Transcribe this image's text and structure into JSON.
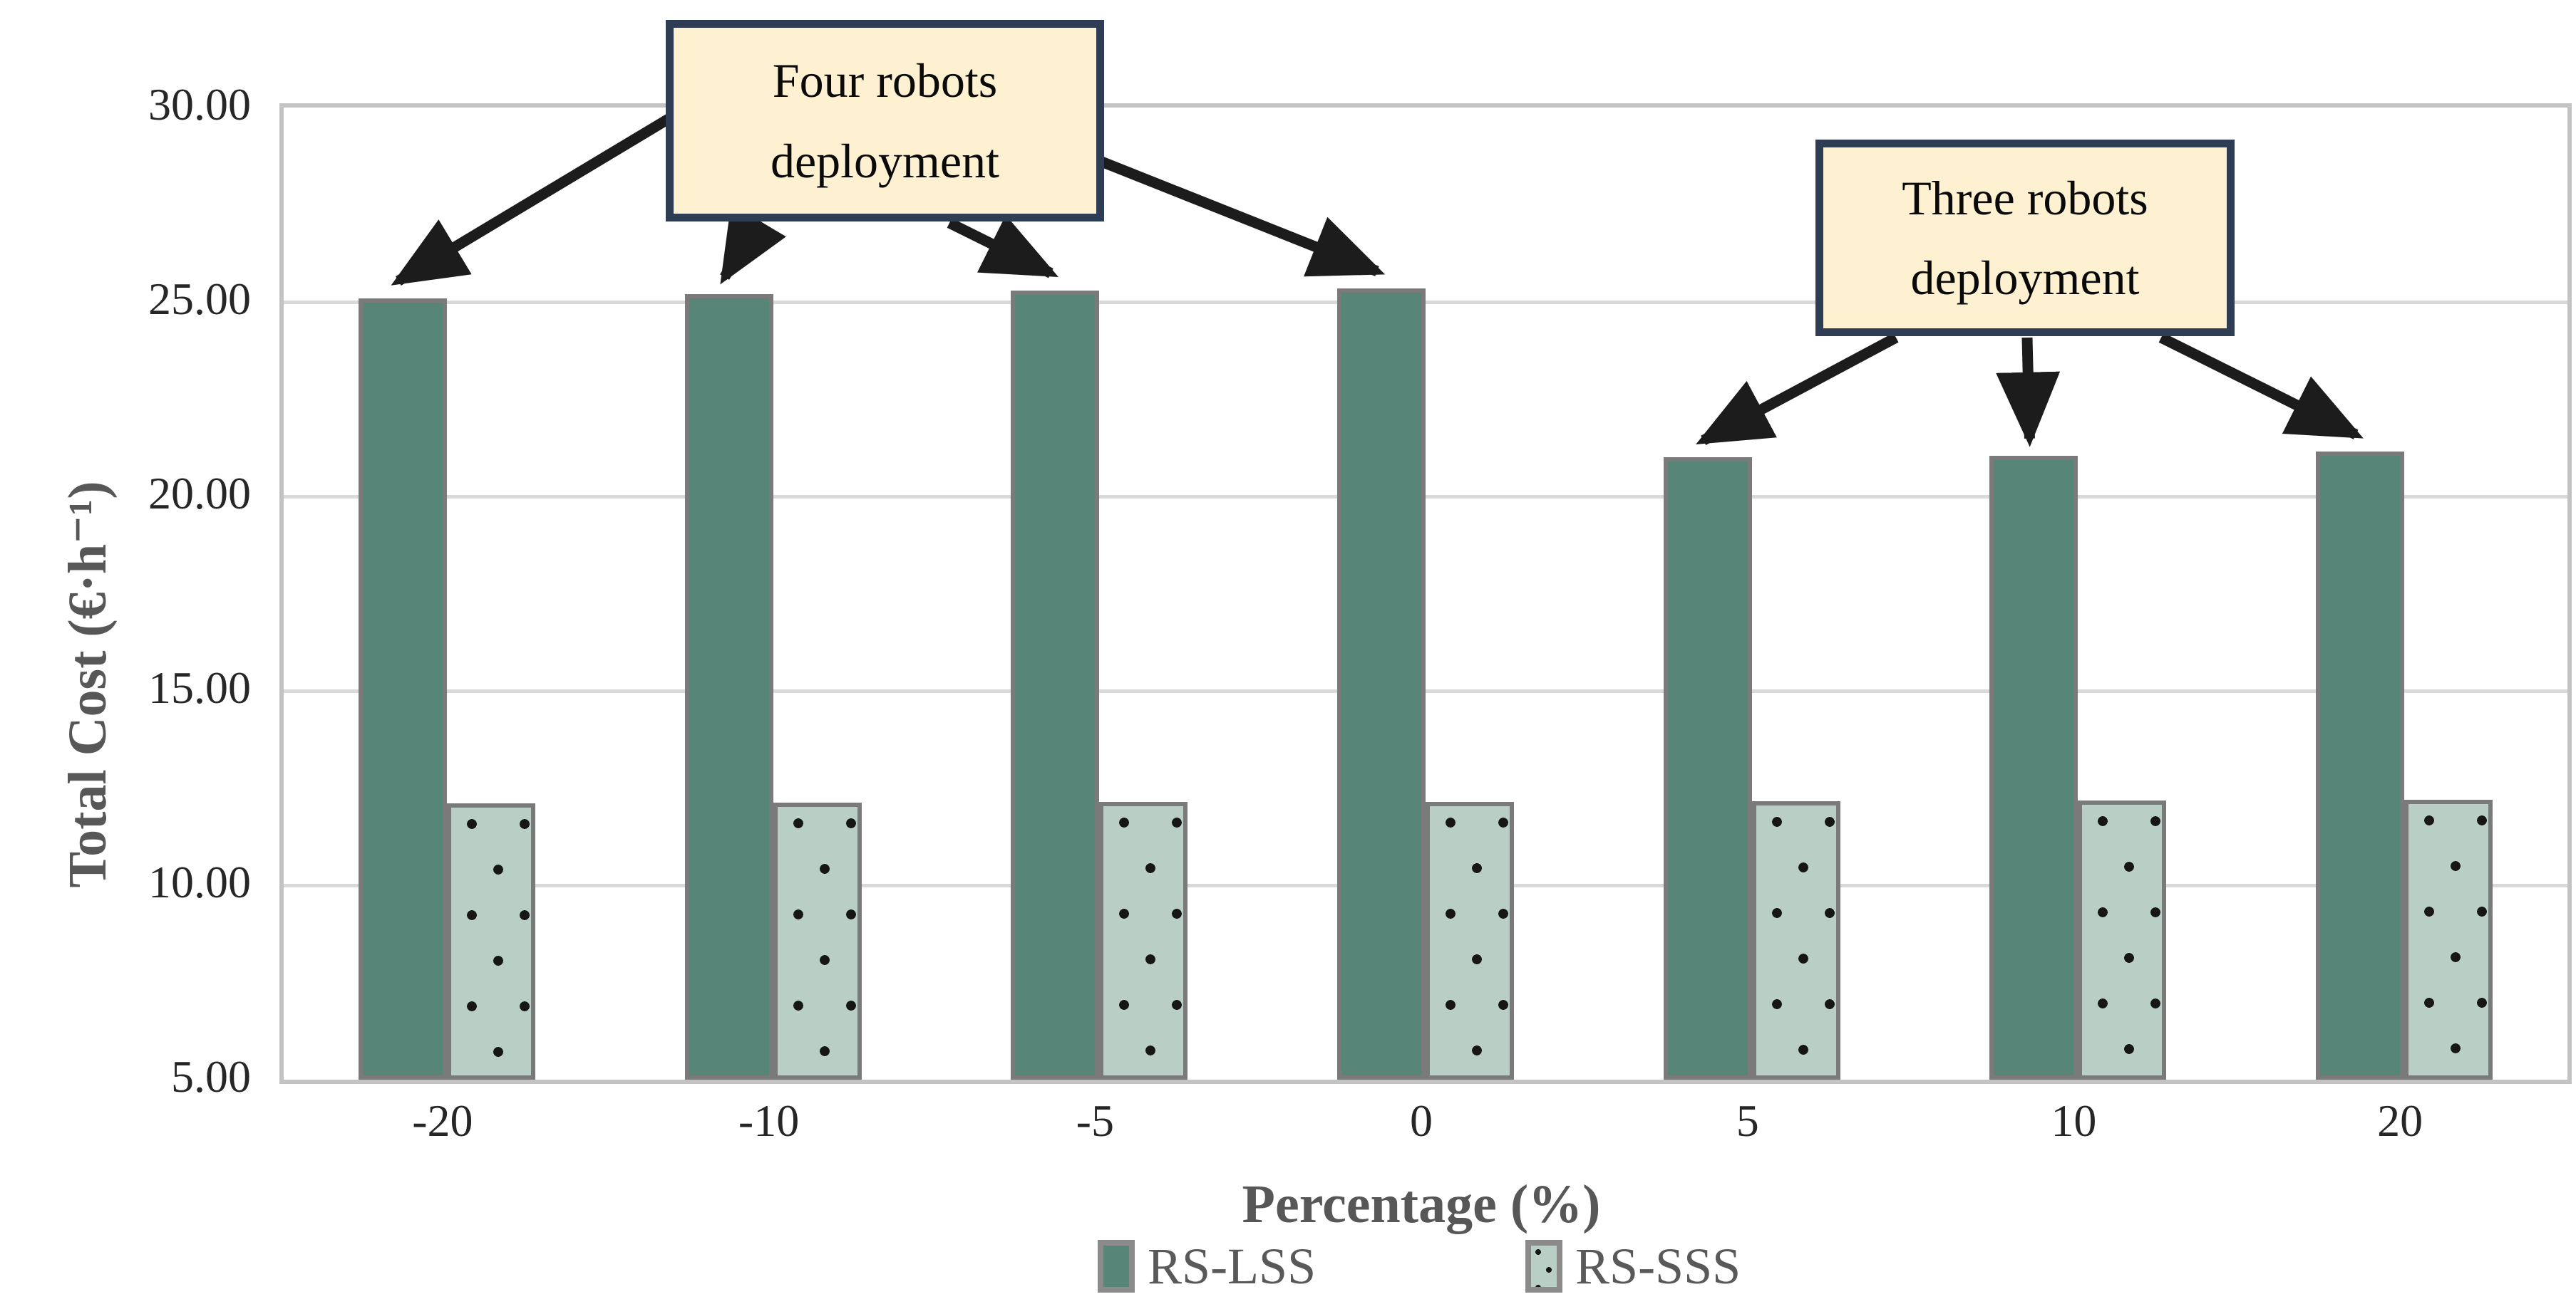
{
  "chart_data": {
    "type": "bar",
    "title": "",
    "categories": [
      "-20",
      "-10",
      "-5",
      "0",
      "5",
      "10",
      "20"
    ],
    "series": [
      {
        "name": "RS-LSS",
        "pattern": "solid",
        "color": "#578577",
        "values": [
          25.1,
          25.2,
          25.3,
          25.35,
          21.0,
          21.05,
          21.15
        ]
      },
      {
        "name": "RS-SSS",
        "pattern": "dotted",
        "color": "#b9cfc6",
        "values": [
          12.1,
          12.12,
          12.14,
          12.15,
          12.16,
          12.18,
          12.2
        ]
      }
    ],
    "xlabel": "Percentage (%)",
    "ylabel": "Total Cost (€·h⁻¹)",
    "ylim": [
      5,
      30
    ],
    "ytick_step": 5,
    "yticks": [
      "30.00",
      "25.00",
      "20.00",
      "15.00",
      "10.00",
      "5.00"
    ],
    "grid": "horizontal-only",
    "gridline_color": "#d9d9d9",
    "legend_position": "bottom"
  },
  "annotations": [
    {
      "id": "four-robots",
      "text": "Four robots\ndeployment",
      "targets": [
        0,
        1,
        2,
        3
      ],
      "box_fill": "#fdf1d1",
      "box_border": "#2e3c54"
    },
    {
      "id": "three-robots",
      "text": "Three robots\ndeployment",
      "targets": [
        4,
        5,
        6
      ],
      "box_fill": "#fdf1d1",
      "box_border": "#2e3c54"
    }
  ],
  "legend": {
    "items": [
      "RS-LSS",
      "RS-SSS"
    ]
  },
  "colors": {
    "bar_border": "#7a7a7a",
    "arrow": "#1c1c1c",
    "tick_label": "#262626",
    "axis_title": "#575757",
    "legend_label": "#595959",
    "plot_frame": "#c3c3c3"
  }
}
